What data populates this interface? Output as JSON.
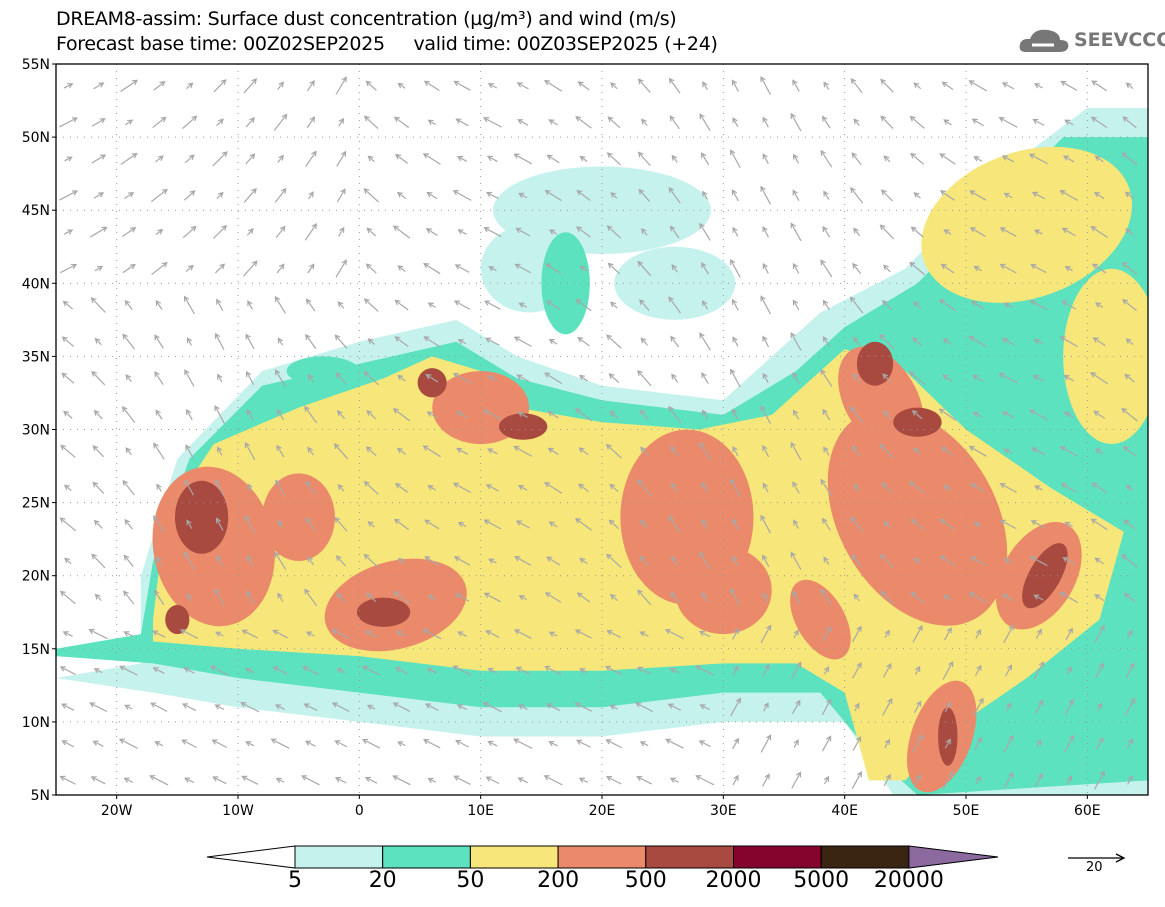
{
  "header": {
    "title_line1": "DREAM8-assim: Surface dust concentration (µg/m³) and wind (m/s)",
    "title_line2": "Forecast base time: 00Z02SEP2025     valid time: 00Z03SEP2025 (+24)",
    "logo_text": "SEEVCCC"
  },
  "map": {
    "lat_labels": [
      "55N",
      "50N",
      "45N",
      "40N",
      "35N",
      "30N",
      "25N",
      "20N",
      "15N",
      "10N",
      "5N"
    ],
    "lon_labels": [
      "20W",
      "10W",
      "0",
      "10E",
      "20E",
      "30E",
      "40E",
      "50E",
      "60E"
    ],
    "lon_range": [
      -25,
      65
    ],
    "lat_range": [
      5,
      55
    ]
  },
  "legend": {
    "labels": [
      "5",
      "20",
      "50",
      "200",
      "500",
      "2000",
      "5000",
      "20000"
    ],
    "colors": [
      "#ffffff",
      "#c6f2ee",
      "#5ce2be",
      "#f7e77a",
      "#ea8a6a",
      "#a84a40",
      "#84042e",
      "#3a2412",
      "#8c6aa0"
    ],
    "wind_reference": "20"
  }
}
